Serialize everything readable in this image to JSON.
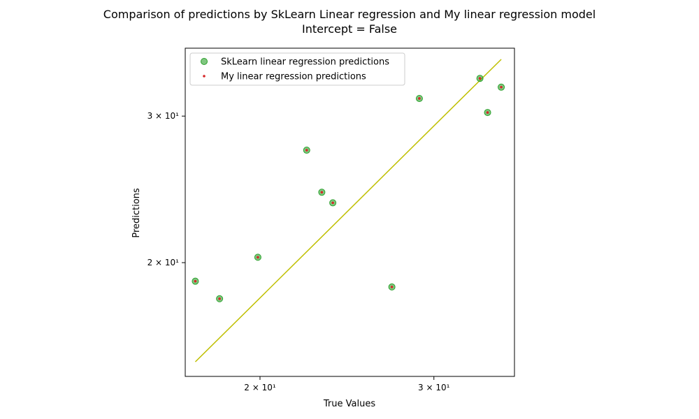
{
  "chart_data": {
    "type": "scatter",
    "title": "Comparison of predictions by SkLearn Linear regression and My linear regression model",
    "subtitle": "Intercept = False",
    "xlabel": "True Values",
    "ylabel": "Predictions",
    "xscale": "log",
    "yscale": "log",
    "xlim": [
      16.8,
      36.2
    ],
    "ylim": [
      14.6,
      36.2
    ],
    "xticks": [
      {
        "value": 20,
        "label": "2 × 10¹"
      },
      {
        "value": 30,
        "label": "3 × 10¹"
      }
    ],
    "yticks": [
      {
        "value": 20,
        "label": "2 × 10¹"
      },
      {
        "value": 30,
        "label": "3 × 10¹"
      }
    ],
    "legend_position": "top-left",
    "series": [
      {
        "name": "SkLearn linear regression predictions",
        "color": "#2ca02c",
        "marker": "circle-large",
        "x": [
          17.2,
          18.2,
          19.9,
          22.3,
          23.1,
          23.7,
          27.2,
          29.0,
          33.4,
          34.0,
          35.1
        ],
        "y": [
          19.0,
          18.1,
          20.3,
          27.3,
          24.3,
          23.6,
          18.7,
          31.5,
          33.3,
          30.3,
          32.5
        ]
      },
      {
        "name": "My linear regression predictions",
        "color": "#d62728",
        "marker": "dot-small",
        "x": [
          17.2,
          18.2,
          19.9,
          22.3,
          23.1,
          23.7,
          27.2,
          29.0,
          33.4,
          34.0,
          35.1
        ],
        "y": [
          19.0,
          18.1,
          20.3,
          27.3,
          24.3,
          23.6,
          18.7,
          31.5,
          33.3,
          30.3,
          32.5
        ]
      }
    ],
    "reference_line": {
      "color": "#bfbf00",
      "x": [
        17.2,
        35.1
      ],
      "y": [
        15.2,
        35.1
      ]
    }
  }
}
